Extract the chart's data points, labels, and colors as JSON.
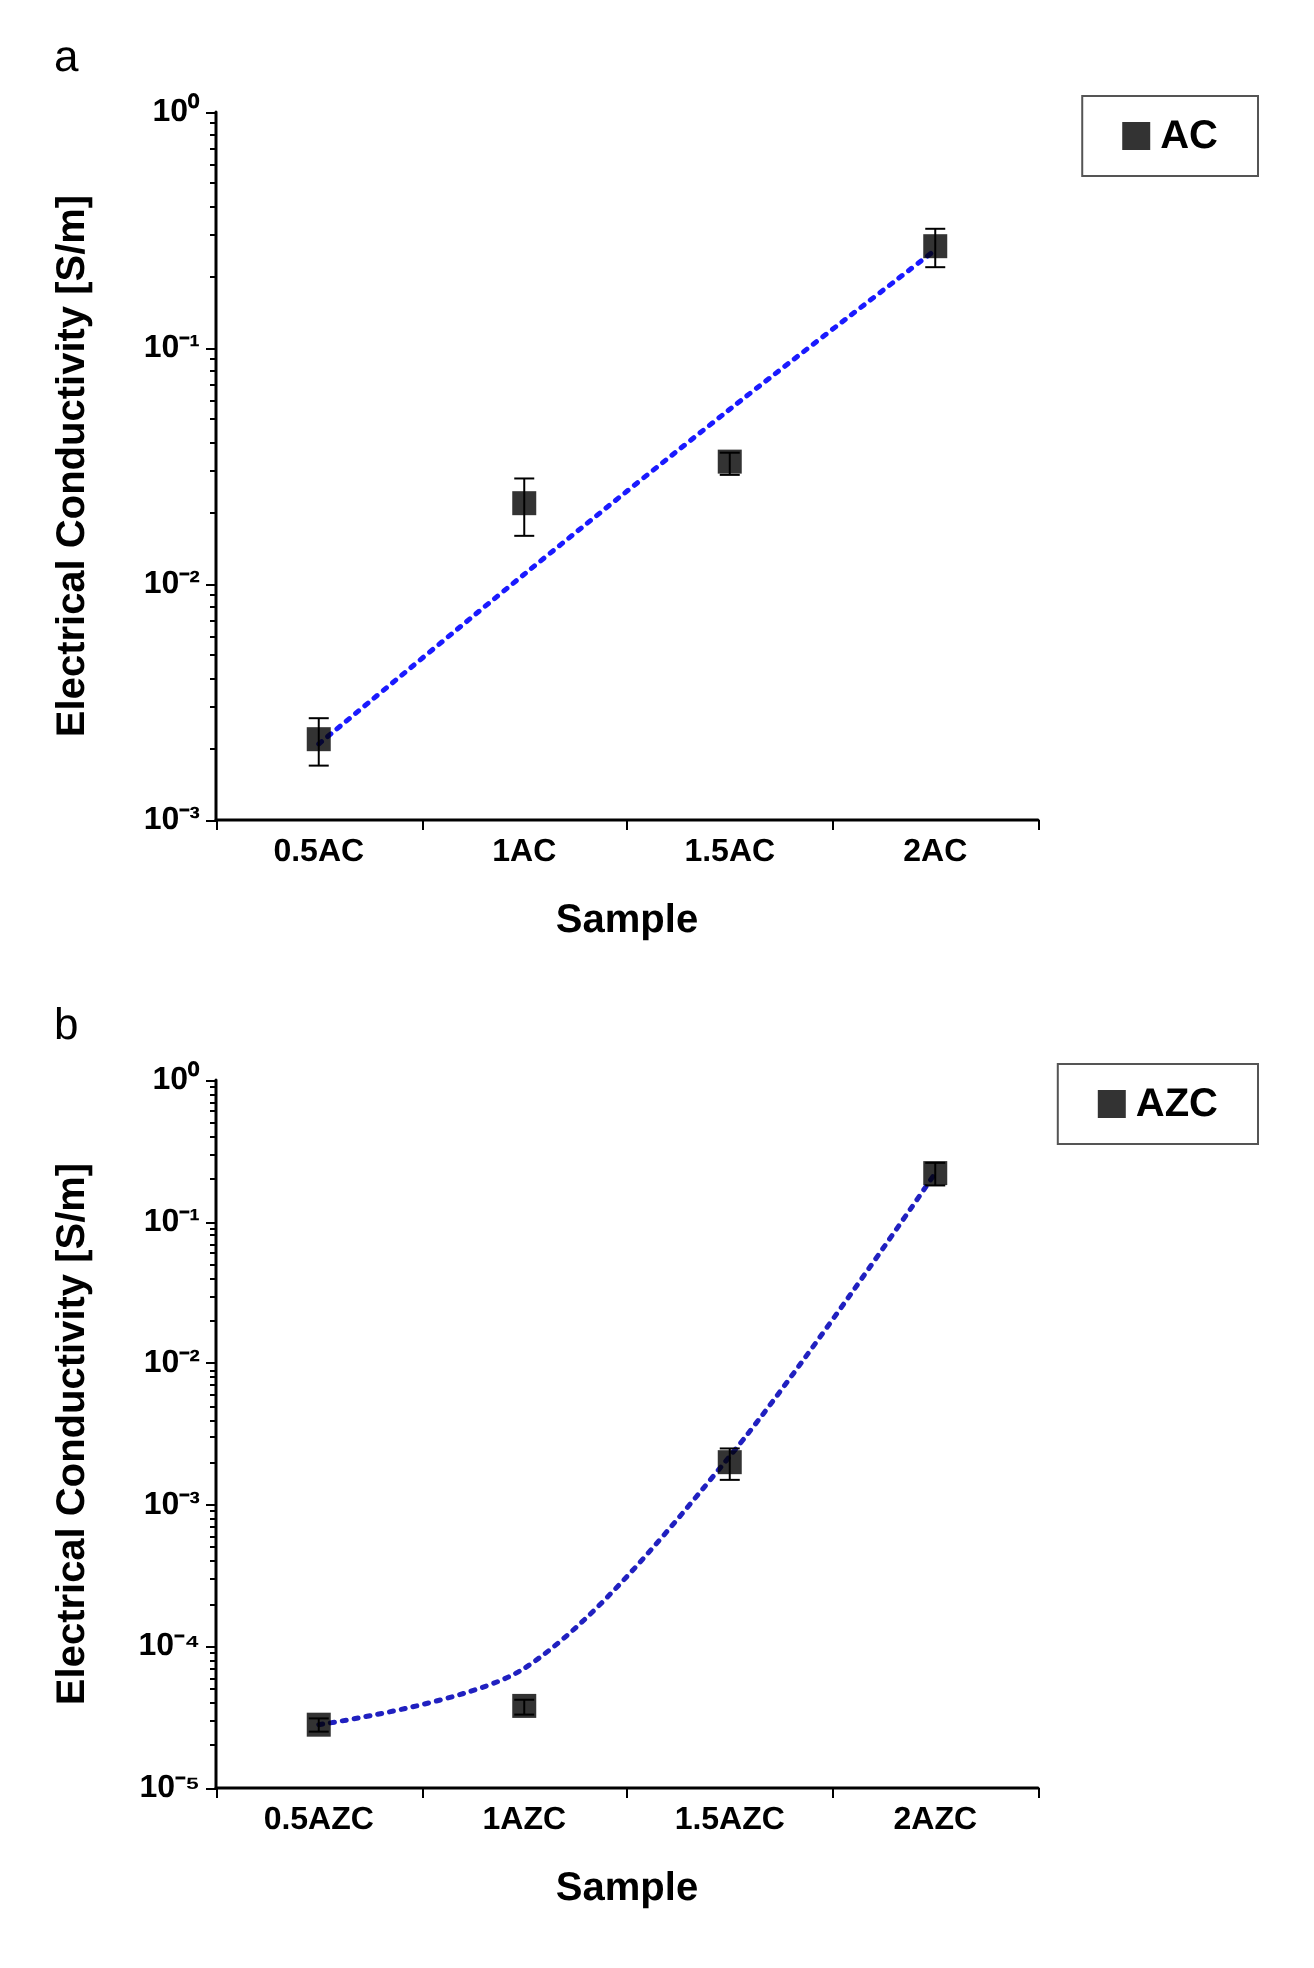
{
  "chart_data": [
    {
      "type": "scatter",
      "title": "a",
      "xlabel": "Sample",
      "ylabel": "Electrical Conductivity [S/m]",
      "categories": [
        "0.5AC",
        "1AC",
        "1.5AC",
        "2AC"
      ],
      "log": "y",
      "ylim": [
        0.001,
        1
      ],
      "yticks": [
        {
          "value": 0.001,
          "label": "10⁻³"
        },
        {
          "value": 0.01,
          "label": "10⁻²"
        },
        {
          "value": 0.1,
          "label": "10⁻¹"
        },
        {
          "value": 1,
          "label": "10⁰"
        }
      ],
      "grid": false,
      "legend": "top right",
      "marker": "square",
      "series": [
        {
          "name": "AC",
          "color": "#000000",
          "values": [
            0.0022,
            0.022,
            0.033,
            0.27
          ],
          "errors": [
            [
              0.0017,
              0.0027
            ],
            [
              0.016,
              0.028
            ],
            [
              0.029,
              0.036
            ],
            [
              0.22,
              0.32
            ]
          ]
        },
        {
          "type": "line",
          "color": "#1a1aff",
          "line_style": "dotted",
          "marker": "none",
          "values": [
            0.0021,
            0.011,
            0.055,
            0.26
          ]
        }
      ]
    },
    {
      "type": "scatter",
      "title": "b",
      "xlabel": "Sample",
      "ylabel": "Electrical Conductivity [S/m]",
      "categories": [
        "0.5AZC",
        "1AZC",
        "1.5AZC",
        "2AZC"
      ],
      "log": "y",
      "ylim": [
        1e-05,
        1
      ],
      "yticks": [
        {
          "value": 1e-05,
          "label": "10⁻⁵"
        },
        {
          "value": 0.0001,
          "label": "10⁻⁴"
        },
        {
          "value": 0.001,
          "label": "10⁻³"
        },
        {
          "value": 0.01,
          "label": "10⁻²"
        },
        {
          "value": 0.1,
          "label": "10⁻¹"
        },
        {
          "value": 1,
          "label": "10⁰"
        }
      ],
      "grid": false,
      "legend": "top right",
      "marker": "square",
      "series": [
        {
          "name": "AZC",
          "color": "#000000",
          "values": [
            2.8e-05,
            3.8e-05,
            0.002,
            0.22
          ],
          "errors": [
            [
              2.5e-05,
              3.1e-05
            ],
            [
              3.3e-05,
              4.2e-05
            ],
            [
              0.0015,
              0.0025
            ],
            [
              0.18,
              0.26
            ]
          ]
        },
        {
          "type": "line",
          "color": "#2020c0",
          "line_style": "dotted",
          "marker": "none",
          "values": [
            2.8e-05,
            7e-05,
            0.0022,
            0.22
          ]
        }
      ]
    }
  ]
}
